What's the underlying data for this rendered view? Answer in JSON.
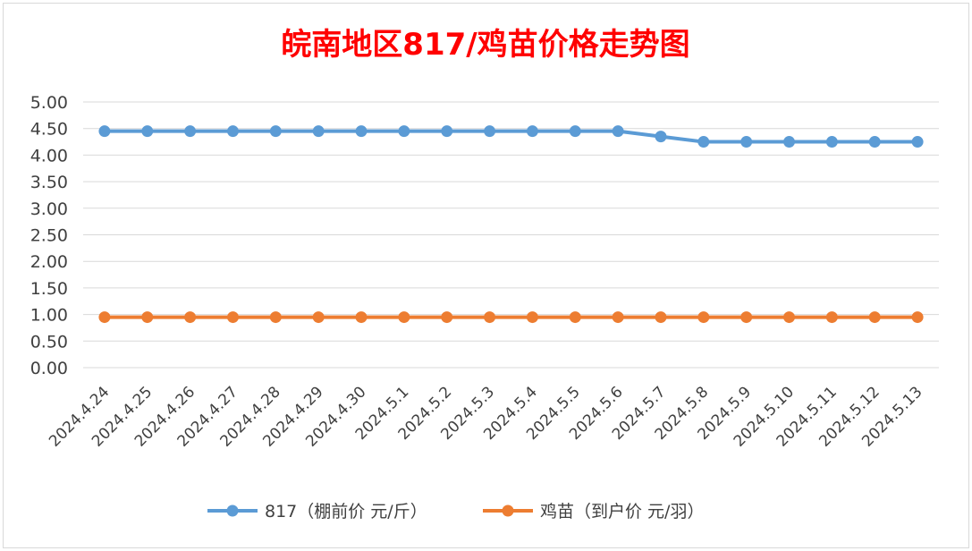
{
  "chart_data": {
    "type": "line",
    "title": "皖南地区817/鸡苗价格走势图",
    "categories": [
      "2024.4.24",
      "2024.4.25",
      "2024.4.26",
      "2024.4.27",
      "2024.4.28",
      "2024.4.29",
      "2024.4.30",
      "2024.5.1",
      "2024.5.2",
      "2024.5.3",
      "2024.5.4",
      "2024.5.5",
      "2024.5.6",
      "2024.5.7",
      "2024.5.8",
      "2024.5.9",
      "2024.5.10",
      "2024.5.11",
      "2024.5.12",
      "2024.5.13"
    ],
    "series": [
      {
        "name": "817（棚前价 元/斤）",
        "color": "#5b9bd5",
        "values": [
          4.45,
          4.45,
          4.45,
          4.45,
          4.45,
          4.45,
          4.45,
          4.45,
          4.45,
          4.45,
          4.45,
          4.45,
          4.45,
          4.35,
          4.25,
          4.25,
          4.25,
          4.25,
          4.25,
          4.25
        ]
      },
      {
        "name": "鸡苗（到户价 元/羽）",
        "color": "#ed7d31",
        "values": [
          0.95,
          0.95,
          0.95,
          0.95,
          0.95,
          0.95,
          0.95,
          0.95,
          0.95,
          0.95,
          0.95,
          0.95,
          0.95,
          0.95,
          0.95,
          0.95,
          0.95,
          0.95,
          0.95,
          0.95
        ]
      }
    ],
    "ylim": [
      0,
      5
    ],
    "yticks": [
      "0.00",
      "0.50",
      "1.00",
      "1.50",
      "2.00",
      "2.50",
      "3.00",
      "3.50",
      "4.00",
      "4.50",
      "5.00"
    ],
    "grid": true,
    "legend": "bottom"
  }
}
